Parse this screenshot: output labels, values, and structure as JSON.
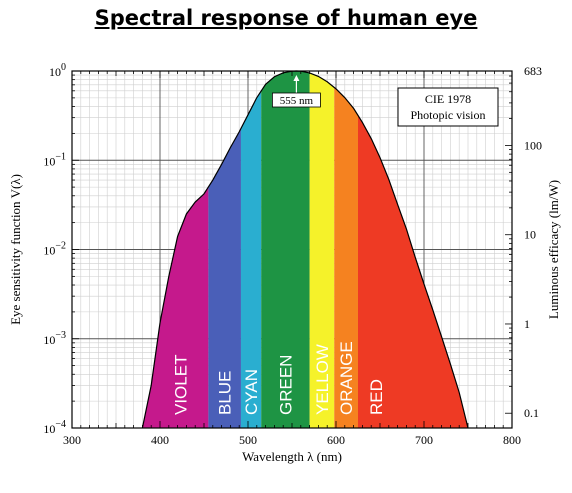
{
  "title": "Spectral response of human eye",
  "chart_data": {
    "type": "area",
    "xlabel": "Wavelength λ (nm)",
    "ylabel": "Eye sensitivity function V(λ)",
    "ylabel_right": "Luminous efficacy (lm/W)",
    "xlim": [
      300,
      800
    ],
    "ylim": [
      0.0001,
      1
    ],
    "yscale": "log",
    "grid": true,
    "x_ticks": [
      "300",
      "400",
      "500",
      "600",
      "700",
      "800"
    ],
    "y_ticks": [
      {
        "value": 1,
        "label": "10",
        "exp": "0"
      },
      {
        "value": 0.1,
        "label": "10",
        "exp": "−1"
      },
      {
        "value": 0.01,
        "label": "10",
        "exp": "−2"
      },
      {
        "value": 0.001,
        "label": "10",
        "exp": "−3"
      },
      {
        "value": 0.0001,
        "label": "10",
        "exp": "−4"
      }
    ],
    "y2_ticks": [
      {
        "value": 683,
        "label": "683"
      },
      {
        "value": 100,
        "label": "100"
      },
      {
        "value": 10,
        "label": "10"
      },
      {
        "value": 1,
        "label": "1"
      },
      {
        "value": 0.1,
        "label": "0.1"
      }
    ],
    "curve": {
      "x": [
        380,
        390,
        400,
        410,
        420,
        430,
        440,
        450,
        460,
        470,
        480,
        490,
        500,
        510,
        520,
        530,
        540,
        550,
        555,
        560,
        570,
        580,
        590,
        600,
        610,
        620,
        630,
        640,
        650,
        660,
        670,
        680,
        690,
        700,
        710,
        720,
        730,
        740,
        750
      ],
      "y": [
        0.0001,
        0.0003,
        0.0015,
        0.005,
        0.014,
        0.025,
        0.034,
        0.042,
        0.06,
        0.09,
        0.139,
        0.208,
        0.323,
        0.503,
        0.71,
        0.862,
        0.954,
        0.995,
        1.0,
        0.995,
        0.952,
        0.87,
        0.757,
        0.631,
        0.503,
        0.381,
        0.265,
        0.175,
        0.107,
        0.061,
        0.032,
        0.017,
        0.0082,
        0.0041,
        0.0021,
        0.00105,
        0.00052,
        0.00025,
        0.0001
      ]
    },
    "bands": [
      {
        "name": "VIOLET",
        "from": 380,
        "to": 455,
        "color": "#c5198c"
      },
      {
        "name": "BLUE",
        "from": 455,
        "to": 492,
        "color": "#4a5fb8"
      },
      {
        "name": "CYAN",
        "from": 492,
        "to": 515,
        "color": "#2aaed0"
      },
      {
        "name": "GREEN",
        "from": 515,
        "to": 570,
        "color": "#1e9444"
      },
      {
        "name": "YELLOW",
        "from": 570,
        "to": 598,
        "color": "#f5f22a"
      },
      {
        "name": "ORANGE",
        "from": 598,
        "to": 625,
        "color": "#f58220"
      },
      {
        "name": "RED",
        "from": 625,
        "to": 750,
        "color": "#ee3a24"
      }
    ],
    "peak_annotation": {
      "x": 555,
      "label": "555 nm"
    },
    "legend_box": {
      "line1": "CIE 1978",
      "line2": "Photopic vision",
      "position": "top-right"
    }
  }
}
